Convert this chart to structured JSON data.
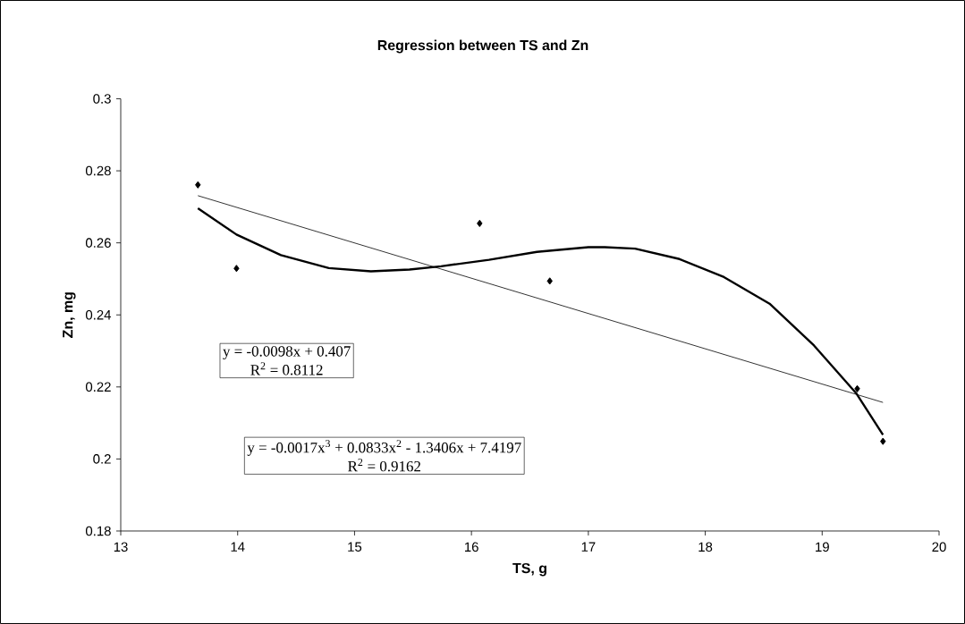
{
  "chart_data": {
    "type": "scatter",
    "title": "Regression between TS and Zn",
    "xlabel": "TS, g",
    "ylabel": "Zn, mg",
    "x": [
      13.66,
      13.99,
      16.07,
      16.67,
      19.3,
      19.52
    ],
    "series": [
      {
        "color": "#000000",
        "values": [
          0.2761,
          0.2529,
          0.2654,
          0.2494,
          0.2195,
          0.2049
        ]
      },
      {
        "type": "line",
        "color": "#000000",
        "marker": "none",
        "x": [
          13.66,
          19.52
        ],
        "values": [
          0.2731,
          0.2157
        ]
      },
      {
        "type": "line",
        "color": "#000000",
        "marker": "none",
        "x": [
          13.66,
          13.99,
          14.37,
          14.78,
          15.14,
          15.47,
          15.74,
          16.15,
          16.56,
          17.0,
          17.14,
          17.4,
          17.78,
          18.16,
          18.55,
          18.93,
          19.29,
          19.52
        ],
        "values": [
          0.2696,
          0.2623,
          0.2566,
          0.253,
          0.2521,
          0.2526,
          0.2535,
          0.2553,
          0.2575,
          0.2588,
          0.2588,
          0.2584,
          0.2555,
          0.2505,
          0.2431,
          0.2315,
          0.2183,
          0.2067
        ]
      }
    ],
    "annotations": [
      "y = -0.0098x + 0.407",
      "R$^{2}$ = 0.8112",
      "y = -0.0017x$^{3}$ + 0.0833x$^{2}$ - 1.3406x + 7.4197",
      "R$^{2}$ = 0.9162"
    ],
    "xlim": [
      13,
      20
    ],
    "ylim": [
      0.18,
      0.3
    ],
    "xticks": [
      13,
      14,
      15,
      16,
      17,
      18,
      19,
      20
    ],
    "yticks": [
      0.18,
      0.2,
      0.22,
      0.24,
      0.26,
      0.28,
      0.3
    ],
    "marker": "diamond",
    "grid": false,
    "legend": false
  }
}
